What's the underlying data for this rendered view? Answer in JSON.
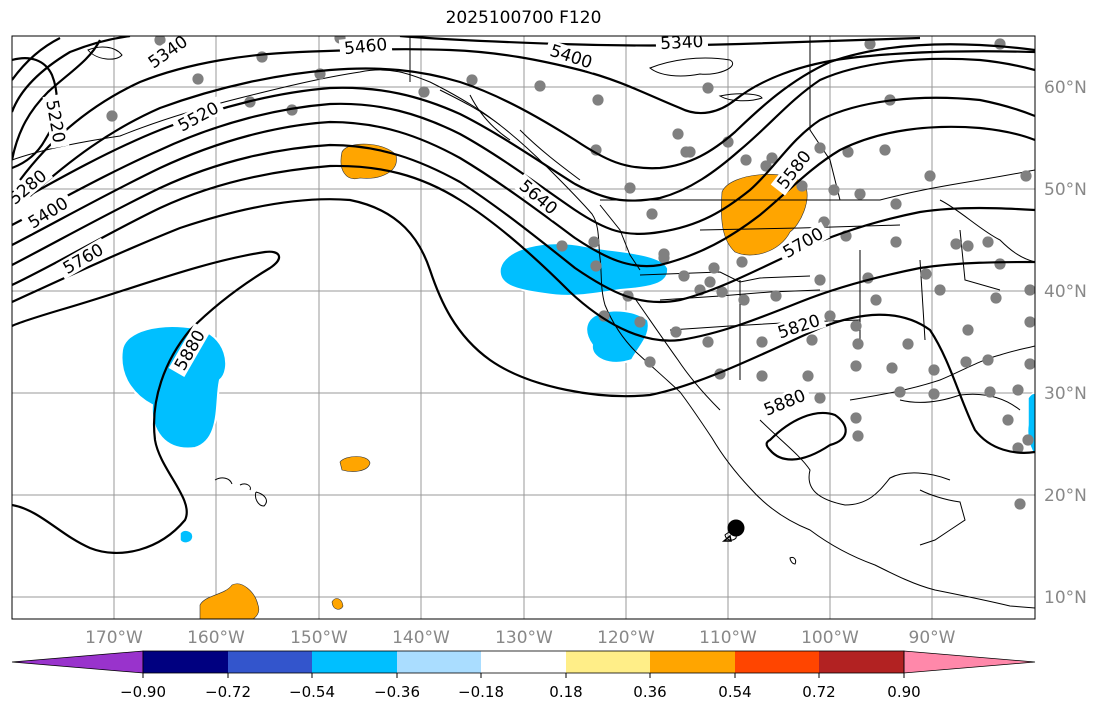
{
  "title": "2025100700 F120",
  "longitude_labels": [
    "170°W",
    "160°W",
    "150°W",
    "140°W",
    "130°W",
    "120°W",
    "110°W",
    "100°W",
    "90°W"
  ],
  "latitude_labels": [
    "60°N",
    "50°N",
    "40°N",
    "30°N",
    "20°N",
    "10°N"
  ],
  "contour_labels": [
    "5340",
    "5460",
    "5220",
    "5520",
    "5280",
    "5400",
    "5760",
    "5880",
    "5400",
    "5340",
    "5640",
    "5580",
    "5700",
    "5820",
    "5880"
  ],
  "colorbar": {
    "tick_labels": [
      "−0.90",
      "−0.72",
      "−0.54",
      "−0.36",
      "−0.18",
      "0.18",
      "0.36",
      "0.54",
      "0.72",
      "0.90"
    ],
    "colors": [
      "#9933cc",
      "#000080",
      "#3355cc",
      "#00bfff",
      "#aaddff",
      "#ffffff",
      "#ffee88",
      "#ffa500",
      "#ff4500",
      "#b22222",
      "#ff88aa"
    ]
  },
  "colors": {
    "positive_anomaly": "#ffa500",
    "negative_anomaly": "#00bfff",
    "station": "#808080",
    "grid": "#999999",
    "coast": "#000000"
  }
}
